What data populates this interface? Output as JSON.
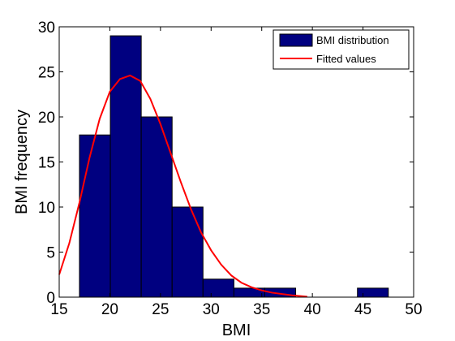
{
  "chart_data": {
    "type": "bar",
    "title": "",
    "xlabel": "BMI",
    "ylabel": "BMI frequency",
    "xlim": [
      15,
      50
    ],
    "ylim": [
      0,
      30
    ],
    "xticks": [
      "15",
      "20",
      "25",
      "30",
      "35",
      "40",
      "45",
      "50"
    ],
    "yticks": [
      "0",
      "5",
      "10",
      "15",
      "20",
      "25",
      "30"
    ],
    "grid": false,
    "legend_position": "top-right",
    "series": [
      {
        "name": "BMI distribution",
        "kind": "histogram",
        "color": "#000080",
        "bins": [
          {
            "x0": 17.0,
            "x1": 20.05,
            "value": 18
          },
          {
            "x0": 20.05,
            "x1": 23.1,
            "value": 29
          },
          {
            "x0": 23.1,
            "x1": 26.15,
            "value": 20
          },
          {
            "x0": 26.15,
            "x1": 29.2,
            "value": 10
          },
          {
            "x0": 29.2,
            "x1": 32.25,
            "value": 2
          },
          {
            "x0": 32.25,
            "x1": 35.3,
            "value": 1
          },
          {
            "x0": 35.3,
            "x1": 38.35,
            "value": 1
          },
          {
            "x0": 38.35,
            "x1": 41.4,
            "value": 0
          },
          {
            "x0": 41.4,
            "x1": 44.45,
            "value": 0
          },
          {
            "x0": 44.45,
            "x1": 47.5,
            "value": 1
          }
        ]
      },
      {
        "name": "Fitted values",
        "kind": "line",
        "color": "#ff0000",
        "x": [
          15,
          16,
          17,
          18,
          19,
          20,
          21,
          22,
          23,
          24,
          25,
          26,
          27,
          28,
          29,
          30,
          31,
          32,
          33,
          34,
          35,
          36,
          37,
          38,
          39,
          39.5
        ],
        "y": [
          2.5,
          6.0,
          10.5,
          15.5,
          19.8,
          22.8,
          24.2,
          24.6,
          24.0,
          22.0,
          19.2,
          16.0,
          12.8,
          9.8,
          7.2,
          5.2,
          3.6,
          2.4,
          1.6,
          1.1,
          0.75,
          0.5,
          0.35,
          0.2,
          0.1,
          0.05
        ]
      }
    ]
  }
}
